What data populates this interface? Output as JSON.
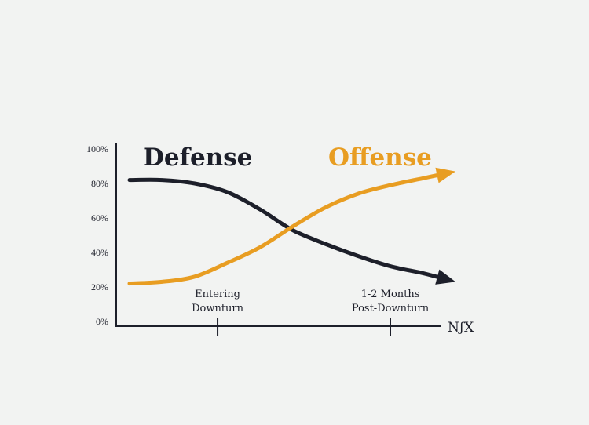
{
  "chart_data": {
    "type": "line",
    "ylim": [
      0,
      100
    ],
    "y_ticks": [
      "0%",
      "20%",
      "40%",
      "60%",
      "80%",
      "100%"
    ],
    "y_tick_values": [
      0,
      20,
      40,
      60,
      80,
      100
    ],
    "xlim": [
      0,
      1
    ],
    "x_annotations": [
      {
        "x": 0.27,
        "lines": [
          "Entering",
          "Downturn"
        ]
      },
      {
        "x": 0.8,
        "lines": [
          "1-2 Months",
          "Post-Downturn"
        ]
      }
    ],
    "series": [
      {
        "name": "Defense",
        "color": "#1d1f2a",
        "points": [
          [
            0.0,
            82
          ],
          [
            0.1,
            82
          ],
          [
            0.2,
            80
          ],
          [
            0.3,
            75
          ],
          [
            0.4,
            65
          ],
          [
            0.5,
            53
          ],
          [
            0.6,
            45
          ],
          [
            0.7,
            38
          ],
          [
            0.8,
            32
          ],
          [
            0.9,
            28
          ],
          [
            1.0,
            23
          ]
        ]
      },
      {
        "name": "Offense",
        "color": "#e89d22",
        "points": [
          [
            0.0,
            22
          ],
          [
            0.1,
            23
          ],
          [
            0.2,
            26
          ],
          [
            0.3,
            34
          ],
          [
            0.4,
            43
          ],
          [
            0.5,
            55
          ],
          [
            0.6,
            66
          ],
          [
            0.7,
            74
          ],
          [
            0.8,
            79
          ],
          [
            0.9,
            83
          ],
          [
            1.0,
            87
          ]
        ]
      }
    ],
    "grid": false,
    "legend": "inline-top"
  },
  "logo_text": "NƒX"
}
